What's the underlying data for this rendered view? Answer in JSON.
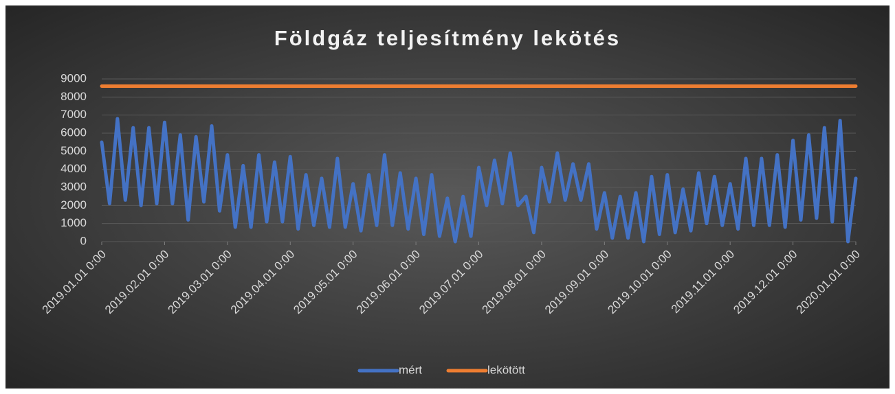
{
  "chart_data": {
    "type": "line",
    "title": "Földgáz teljesítmény lekötés",
    "categories": [
      "2019.01.01 0:00",
      null,
      null,
      null,
      null,
      null,
      null,
      null,
      "2019.02.01 0:00",
      null,
      null,
      null,
      null,
      null,
      null,
      null,
      "2019.03.01 0:00",
      null,
      null,
      null,
      null,
      null,
      null,
      null,
      "2019.04.01 0:00",
      null,
      null,
      null,
      null,
      null,
      null,
      null,
      "2019.05.01 0:00",
      null,
      null,
      null,
      null,
      null,
      null,
      null,
      "2019.06.01 0:00",
      null,
      null,
      null,
      null,
      null,
      null,
      null,
      "2019.07.01 0:00",
      null,
      null,
      null,
      null,
      null,
      null,
      null,
      "2019.08.01 0:00",
      null,
      null,
      null,
      null,
      null,
      null,
      null,
      "2019.09.01 0:00",
      null,
      null,
      null,
      null,
      null,
      null,
      null,
      "2019.10.01 0:00",
      null,
      null,
      null,
      null,
      null,
      null,
      null,
      "2019.11.01 0:00",
      null,
      null,
      null,
      null,
      null,
      null,
      null,
      "2019.12.01 0:00",
      null,
      null,
      null,
      null,
      null,
      null,
      null,
      "2020.01.01 0:00"
    ],
    "series": [
      {
        "name": "mért",
        "color": "#4472c4",
        "values": [
          5500,
          2100,
          6800,
          2300,
          6300,
          2000,
          6300,
          2100,
          6600,
          2100,
          5900,
          1200,
          5800,
          2200,
          6400,
          1700,
          4800,
          800,
          4200,
          800,
          4800,
          1100,
          4400,
          1100,
          4700,
          700,
          3700,
          900,
          3500,
          800,
          4600,
          800,
          3200,
          600,
          3700,
          900,
          4800,
          900,
          3800,
          700,
          3500,
          400,
          3700,
          300,
          2400,
          0,
          2500,
          300,
          4100,
          2000,
          4500,
          2100,
          4900,
          2000,
          2500,
          500,
          4100,
          2200,
          4900,
          2300,
          4300,
          2300,
          4300,
          700,
          2700,
          200,
          2500,
          200,
          2700,
          0,
          3600,
          400,
          3700,
          500,
          2900,
          600,
          3800,
          1000,
          3600,
          900,
          3200,
          700,
          4600,
          900,
          4600,
          900,
          4800,
          800,
          5600,
          1200,
          5900,
          1300,
          6300,
          1100,
          6700,
          0,
          3500
        ]
      },
      {
        "name": "lekötött",
        "color": "#ed7d31",
        "values": [
          8600,
          8600,
          8600,
          8600,
          8600,
          8600,
          8600,
          8600,
          8600,
          8600,
          8600,
          8600,
          8600,
          8600,
          8600,
          8600,
          8600,
          8600,
          8600,
          8600,
          8600,
          8600,
          8600,
          8600,
          8600,
          8600,
          8600,
          8600,
          8600,
          8600,
          8600,
          8600,
          8600,
          8600,
          8600,
          8600,
          8600,
          8600,
          8600,
          8600,
          8600,
          8600,
          8600,
          8600,
          8600,
          8600,
          8600,
          8600,
          8600,
          8600,
          8600,
          8600,
          8600,
          8600,
          8600,
          8600,
          8600,
          8600,
          8600,
          8600,
          8600,
          8600,
          8600,
          8600,
          8600,
          8600,
          8600,
          8600,
          8600,
          8600,
          8600,
          8600,
          8600,
          8600,
          8600,
          8600,
          8600,
          8600,
          8600,
          8600,
          8600,
          8600,
          8600,
          8600,
          8600,
          8600,
          8600,
          8600,
          8600,
          8600,
          8600,
          8600,
          8600,
          8600,
          8600,
          8600,
          8600
        ]
      }
    ],
    "ylim": [
      0,
      9000
    ],
    "yticks": [
      0,
      1000,
      2000,
      3000,
      4000,
      5000,
      6000,
      7000,
      8000,
      9000
    ],
    "grid": true,
    "legend": "bottom"
  }
}
